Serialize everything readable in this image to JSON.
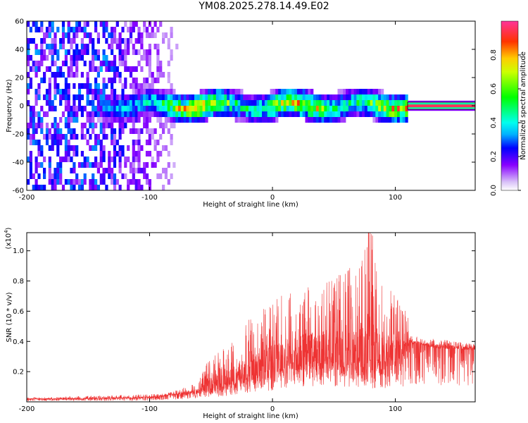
{
  "title": "YM08.2025.278.14.49.E02",
  "chart_data": [
    {
      "type": "heatmap",
      "title": "YM08.2025.278.14.49.E02",
      "xlabel": "Height of straight line (km)",
      "ylabel": "Frequency (Hz)",
      "xlim": [
        -200,
        165
      ],
      "ylim": [
        -60,
        60
      ],
      "xticks": [
        "-200",
        "-100",
        "0",
        "100"
      ],
      "yticks": [
        "-60",
        "-40",
        "-20",
        "0",
        "20",
        "40",
        "60"
      ],
      "colorbar": {
        "label": "Normalized spectral amplitude",
        "range": [
          0,
          1
        ],
        "ticks": [
          "0.0",
          "0.2",
          "0.4",
          "0.6",
          "0.8"
        ]
      },
      "description_points": {
        "noise_region_x": [
          -200,
          -70
        ],
        "signal_band_x": [
          -145,
          110
        ],
        "signal_center_freq": 0,
        "synthetic_line_x": [
          110,
          165
        ]
      }
    },
    {
      "type": "line",
      "xlabel": "Height of straight line (km)",
      "ylabel": "SNR (10 * v/v)",
      "multiplier": "(x10",
      "multiplier_exp": "4",
      "multiplier_close": ")",
      "xlim": [
        -200,
        165
      ],
      "ylim": [
        0,
        1.12
      ],
      "xticks": [
        "-200",
        "-100",
        "0",
        "100"
      ],
      "yticks": [
        "0.2",
        "0.4",
        "0.6",
        "0.8",
        "1.0"
      ],
      "color": "#ee3333",
      "envelope": {
        "x": [
          -200,
          -150,
          -100,
          -80,
          -60,
          -55,
          -40,
          -30,
          -20,
          -10,
          0,
          10,
          20,
          30,
          40,
          50,
          60,
          70,
          80,
          90,
          100,
          110,
          112,
          130,
          150,
          165
        ],
        "base": [
          0.02,
          0.02,
          0.03,
          0.05,
          0.07,
          0.1,
          0.12,
          0.16,
          0.2,
          0.22,
          0.25,
          0.28,
          0.3,
          0.32,
          0.33,
          0.32,
          0.33,
          0.33,
          0.3,
          0.3,
          0.32,
          0.35,
          0.4,
          0.37,
          0.36,
          0.35
        ],
        "peak": [
          0.03,
          0.04,
          0.05,
          0.07,
          0.13,
          0.25,
          0.38,
          0.4,
          0.55,
          0.6,
          0.68,
          0.75,
          0.72,
          0.78,
          0.8,
          0.82,
          0.88,
          0.95,
          1.15,
          0.8,
          0.7,
          0.6,
          0.44,
          0.42,
          0.4,
          0.38
        ]
      }
    }
  ]
}
